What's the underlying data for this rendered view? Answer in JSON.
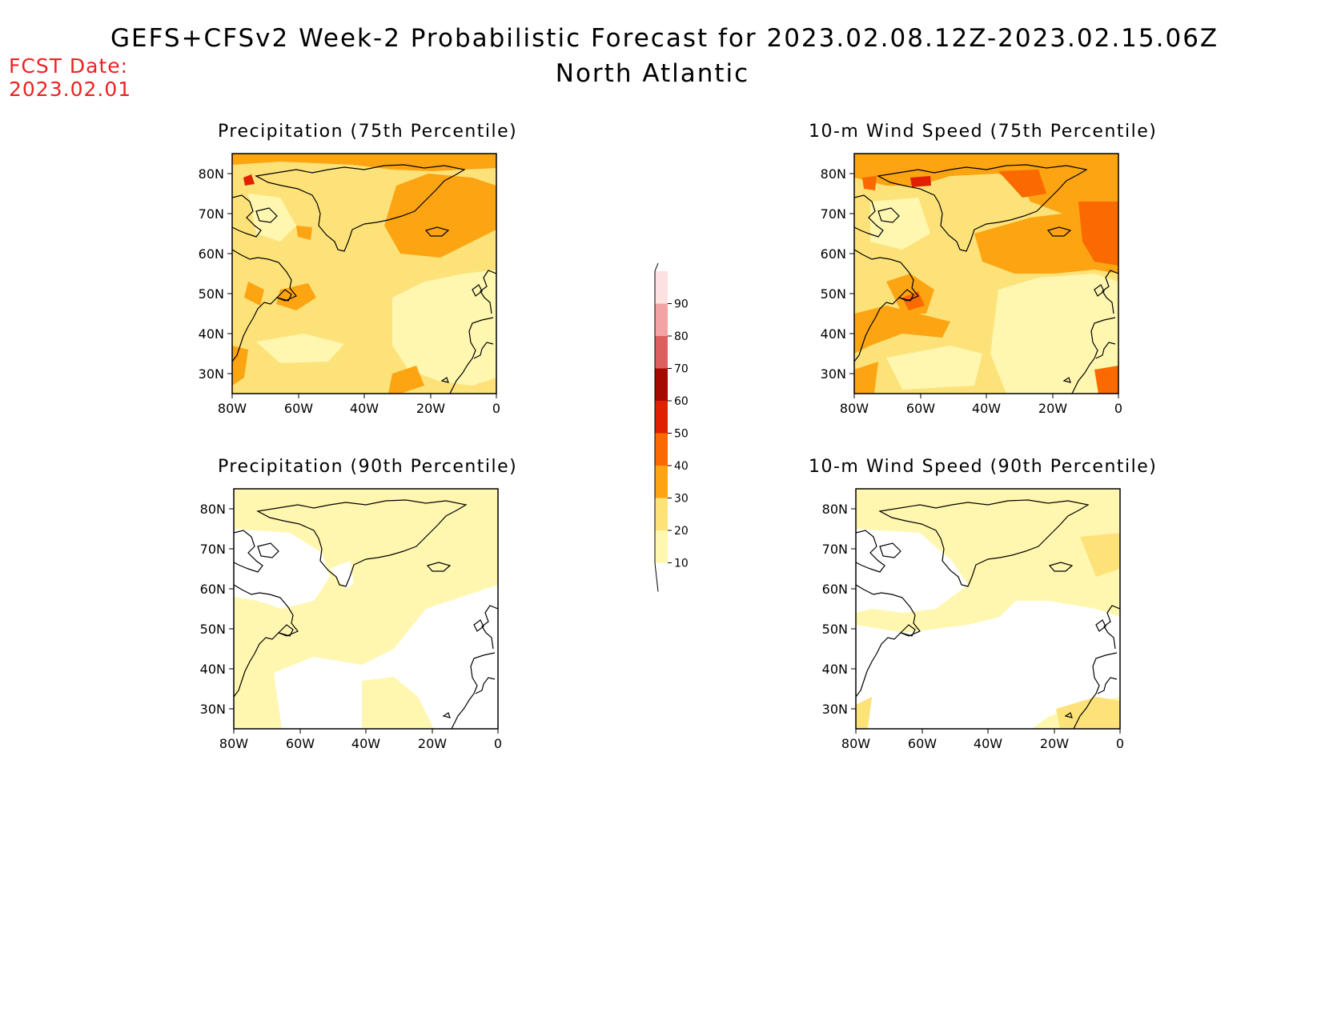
{
  "title": "GEFS+CFSv2 Week-2 Probabilistic Forecast for 2023.02.08.12Z-2023.02.15.06Z",
  "subtitle": "North Atlantic",
  "fcst_date": {
    "label": "FCST Date:",
    "value": "2023.02.01"
  },
  "panels": [
    {
      "id": "precip-75",
      "title": "Precipitation (75th Percentile)"
    },
    {
      "id": "wind-75",
      "title": "10-m Wind Speed (75th Percentile)"
    },
    {
      "id": "precip-90",
      "title": "Precipitation (90th Percentile)"
    },
    {
      "id": "wind-90",
      "title": "10-m Wind Speed (90th Percentile)"
    }
  ],
  "axes": {
    "lat_ticks": [
      "80N",
      "70N",
      "60N",
      "50N",
      "40N",
      "30N"
    ],
    "lon_ticks": [
      "80W",
      "60W",
      "40W",
      "20W",
      "0"
    ]
  },
  "colorbar": {
    "levels": [
      "10",
      "20",
      "30",
      "40",
      "50",
      "60",
      "70",
      "80",
      "90"
    ],
    "colors": [
      "#fff7b0",
      "#fde27a",
      "#fca412",
      "#fb6a00",
      "#e02000",
      "#a50a00",
      "#dd6060",
      "#f4a3a3",
      "#fde0e0"
    ]
  }
}
